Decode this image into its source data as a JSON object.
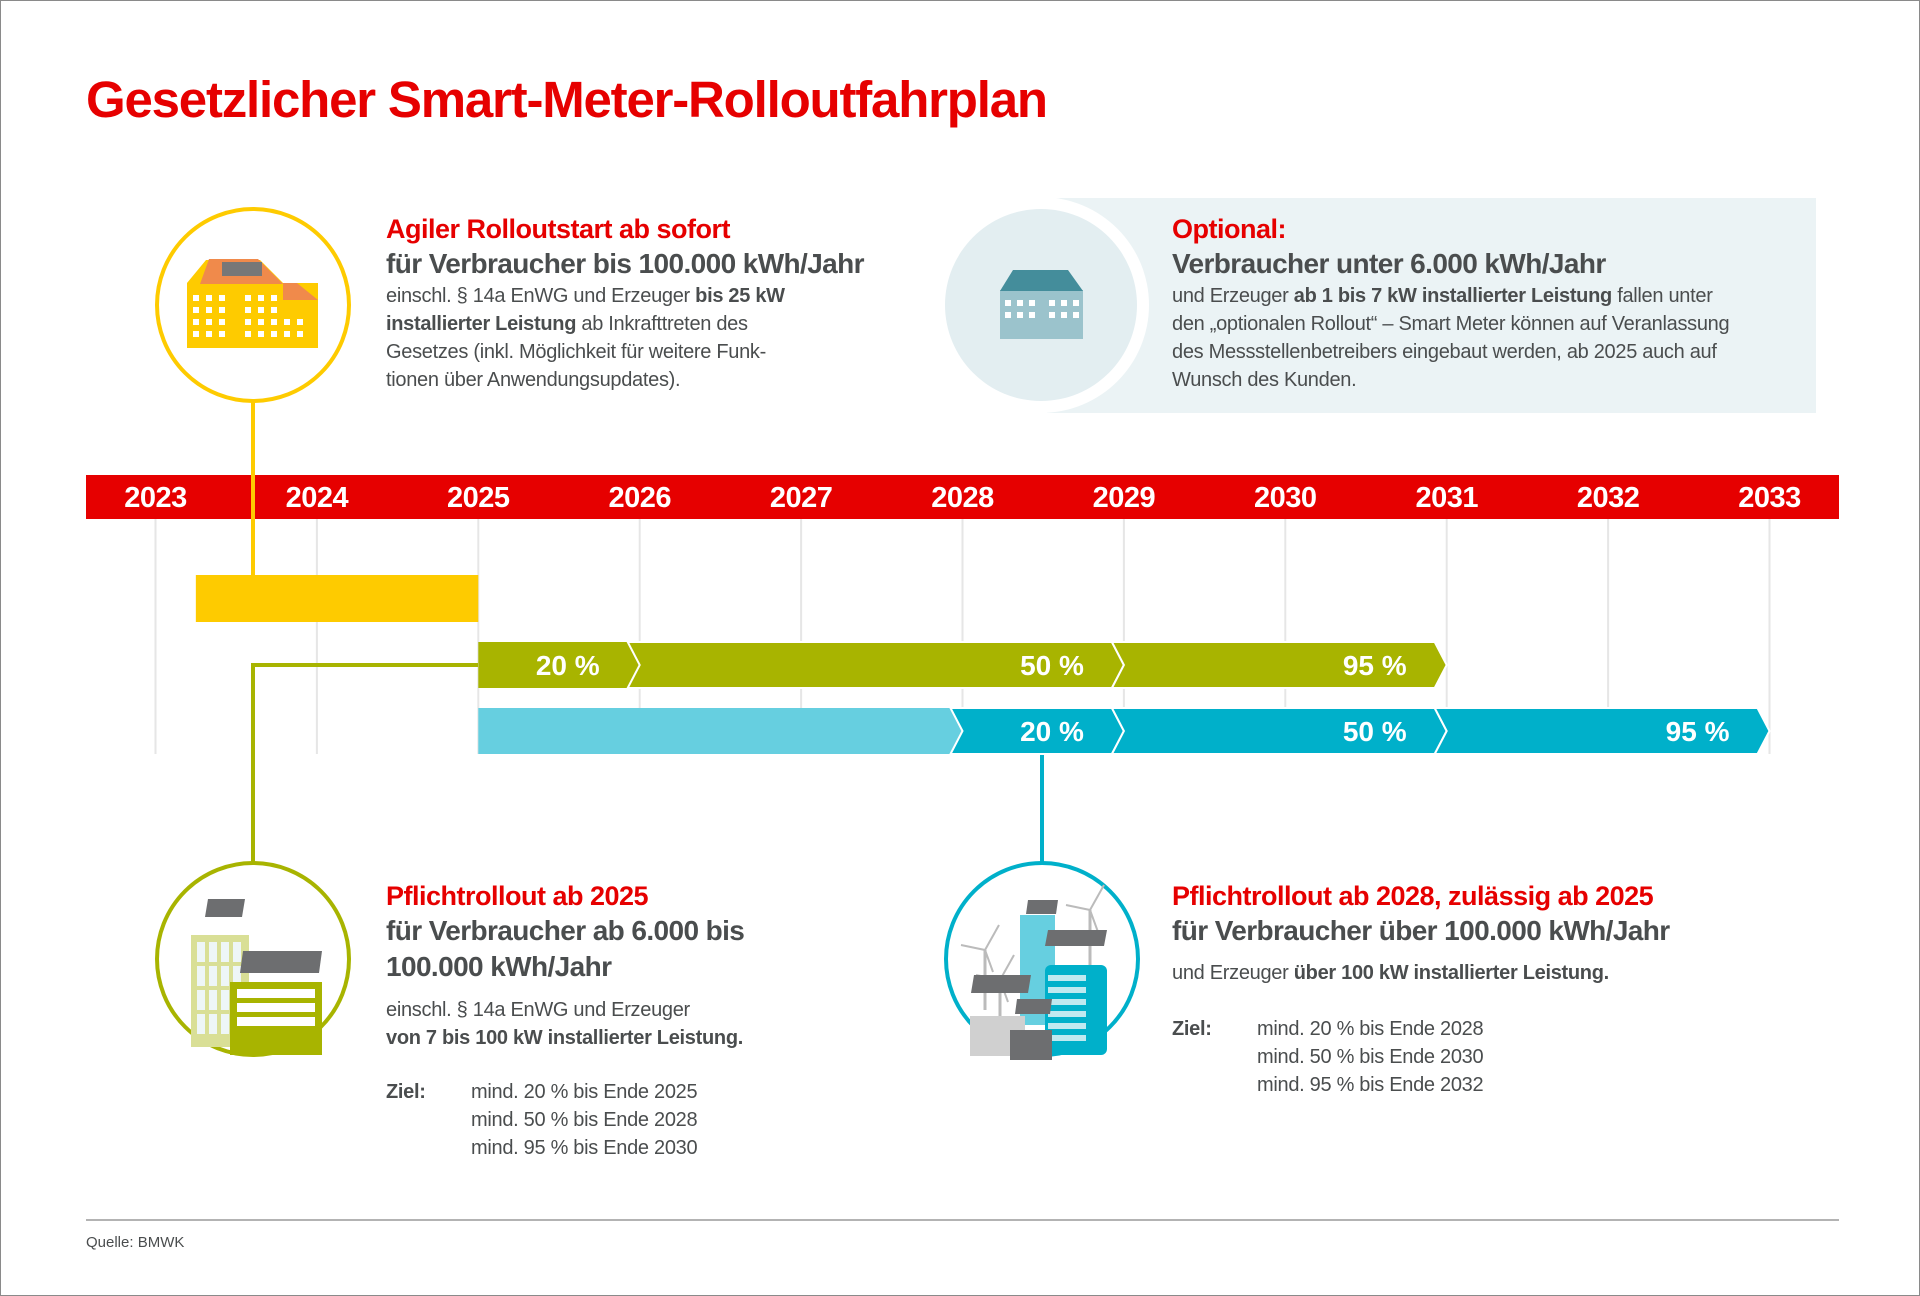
{
  "title": "Gesetzlicher Smart-Meter-Rolloutfahrplan",
  "colors": {
    "red": "#e60000",
    "yellow": "#fecb00",
    "green": "#a8b400",
    "cyan": "#00b0ca",
    "light_cyan": "#66cfe0",
    "text": "#4a4d4e",
    "box": "#ebf3f5"
  },
  "blocks": {
    "agile": {
      "icon": "yellow-building-with-solar-roof-icon",
      "heading": "Agiler Rolloutstart ab sofort",
      "sub": "für Verbraucher bis 100.000 kWh/Jahr",
      "body": [
        [
          {
            "t": "einschl. § 14a EnWG und Erzeuger "
          },
          {
            "t": "bis 25 kW",
            "b": true
          }
        ],
        [
          {
            "t": "installierter Leistung",
            "b": true
          },
          {
            "t": " ab Inkrafttreten des"
          }
        ],
        [
          {
            "t": "Gesetzes (inkl. Möglichkeit für weitere Funk-"
          }
        ],
        [
          {
            "t": "tionen über Anwendungsupdates)."
          }
        ]
      ]
    },
    "optional": {
      "icon": "small-house-icon",
      "heading": "Optional:",
      "sub": "Verbraucher unter 6.000 kWh/Jahr",
      "body": [
        [
          {
            "t": "und Erzeuger "
          },
          {
            "t": "ab 1 bis 7 kW installierter Leistung",
            "b": true
          },
          {
            "t": " fallen unter"
          }
        ],
        [
          {
            "t": "den „optionalen Rollout“ – Smart Meter können auf Veranlassung"
          }
        ],
        [
          {
            "t": "des Messstellenbetreibers eingebaut werden, ab 2025 auch auf"
          }
        ],
        [
          {
            "t": "Wunsch des Kunden."
          }
        ]
      ]
    },
    "mandatory2025": {
      "icon": "office-buildings-with-solar-panels-icon",
      "heading": "Pflichtrollout ab 2025",
      "sub": [
        "für Verbraucher ab 6.000 bis",
        "100.000 kWh/Jahr"
      ],
      "body": [
        [
          {
            "t": "einschl. § 14a EnWG und Erzeuger"
          }
        ],
        [
          {
            "t": "von 7 bis 100 kW installierter Leistung.",
            "b": true
          }
        ]
      ],
      "goal_label": "Ziel:",
      "goals": [
        "mind. 20 % bis Ende 2025",
        "mind. 50 % bis Ende 2028",
        "mind. 95 % bis Ende 2030"
      ]
    },
    "mandatory2028": {
      "icon": "industry-wind-turbines-solar-icon",
      "heading": "Pflichtrollout ab 2028, zulässig ab 2025",
      "sub": [
        "für Verbraucher über 100.000 kWh/Jahr"
      ],
      "body": [
        [
          {
            "t": "und Erzeuger "
          },
          {
            "t": "über 100 kW installierter Leistung.",
            "b": true
          }
        ]
      ],
      "goal_label": "Ziel:",
      "goals": [
        "mind. 20 % bis Ende 2028",
        "mind. 50 % bis Ende 2030",
        "mind. 95 % bis Ende 2032"
      ]
    }
  },
  "timeline": {
    "years": [
      "2023",
      "2024",
      "2025",
      "2026",
      "2027",
      "2028",
      "2029",
      "2030",
      "2031",
      "2032",
      "2033"
    ],
    "bars": [
      {
        "name": "agile",
        "color": "#fecb00",
        "segments": [
          {
            "from": 2023.25,
            "to": 2025,
            "label": "",
            "shape": "flat"
          }
        ]
      },
      {
        "name": "mandatory2025",
        "color": "#a8b400",
        "segments": [
          {
            "from": 2025,
            "to": 2026,
            "label": "20 %"
          },
          {
            "from": 2026,
            "to": 2029,
            "label": "50 %"
          },
          {
            "from": 2029,
            "to": 2031,
            "label": "95 %"
          }
        ]
      },
      {
        "name": "mandatory2028",
        "color": "#00b0ca",
        "segments": [
          {
            "from": 2025,
            "to": 2028,
            "label": "",
            "color": "#66cfe0"
          },
          {
            "from": 2028,
            "to": 2029,
            "label": "20 %"
          },
          {
            "from": 2029,
            "to": 2031,
            "label": "50 %"
          },
          {
            "from": 2031,
            "to": 2033,
            "label": "95 %"
          }
        ]
      }
    ]
  },
  "source": "Quelle: BMWK"
}
